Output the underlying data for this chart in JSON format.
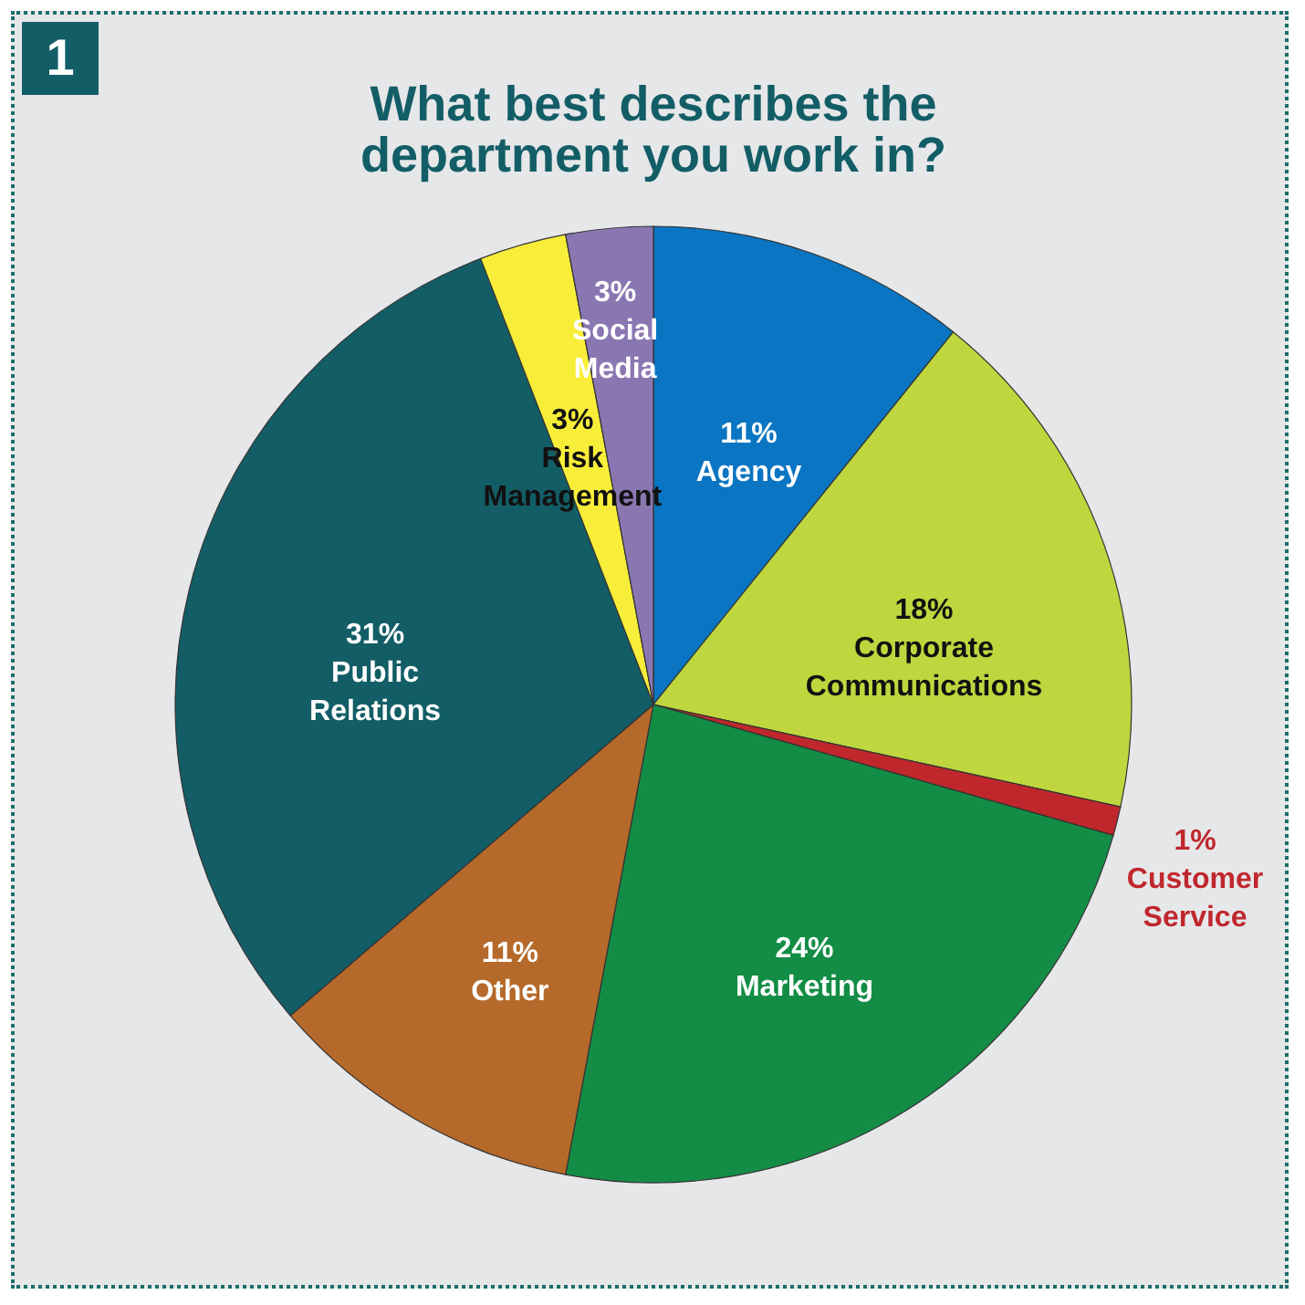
{
  "chart_data": {
    "type": "pie",
    "title": "What best describes the department you work in?",
    "annotations": [
      "1"
    ],
    "categories": [
      "Agency",
      "Corporate Communications",
      "Customer Service",
      "Marketing",
      "Other",
      "Public Relations",
      "Risk Management",
      "Social Media"
    ],
    "values": [
      11,
      18,
      1,
      24,
      11,
      31,
      3,
      3
    ],
    "value_labels": [
      "11%",
      "18%",
      "1%",
      "24%",
      "11%",
      "31%",
      "3%",
      "3%"
    ],
    "colors": [
      "#0a75c2",
      "#bfd63e",
      "#c0272d",
      "#138d45",
      "#b5692a",
      "#135e66",
      "#f8ee3a",
      "#8a77b2"
    ]
  }
}
